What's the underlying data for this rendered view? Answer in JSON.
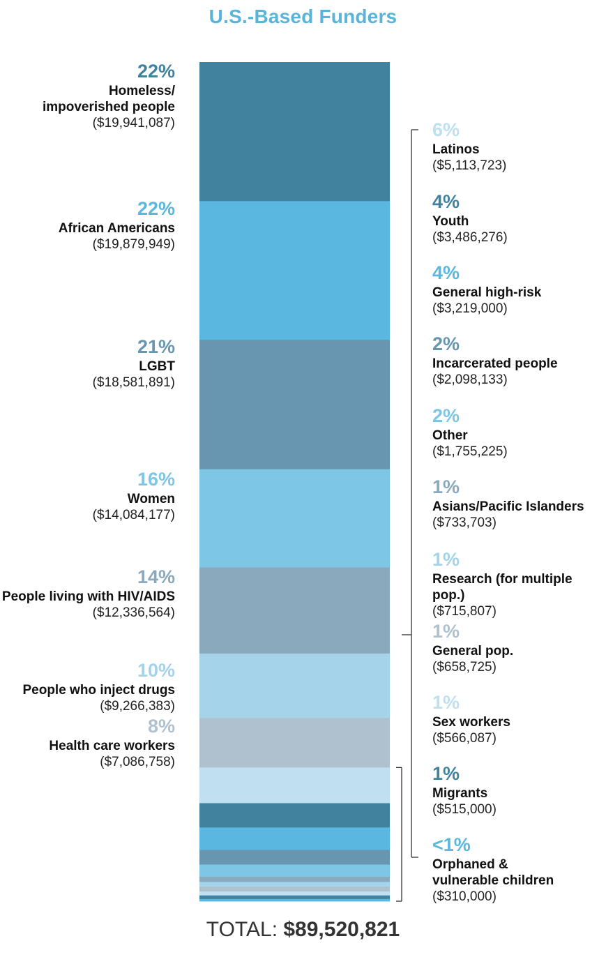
{
  "chart_data": {
    "type": "bar",
    "subtype": "stacked-100",
    "title": "U.S.-Based Funders",
    "total_label": "TOTAL:",
    "total_value": "$89,520,821",
    "segments": [
      {
        "name": "Homeless/ impoverished people",
        "name_lines": [
          "Homeless/",
          "impoverished people"
        ],
        "percent_label": "22%",
        "amount": 19941087,
        "amount_label": "($19,941,087)",
        "color": "#41839f",
        "side": "left"
      },
      {
        "name": "African Americans",
        "name_lines": [
          "African Americans"
        ],
        "percent_label": "22%",
        "amount": 19879949,
        "amount_label": "($19,879,949)",
        "color": "#5ab8e0",
        "side": "left"
      },
      {
        "name": "LGBT",
        "name_lines": [
          "LGBT"
        ],
        "percent_label": "21%",
        "amount": 18581891,
        "amount_label": "($18,581,891)",
        "color": "#6896b0",
        "side": "left"
      },
      {
        "name": "Women",
        "name_lines": [
          "Women"
        ],
        "percent_label": "16%",
        "amount": 14084177,
        "amount_label": "($14,084,177)",
        "color": "#7ec6e6",
        "side": "left"
      },
      {
        "name": "People living with HIV/AIDS",
        "name_lines": [
          "People living with HIV/AIDS"
        ],
        "percent_label": "14%",
        "amount": 12336564,
        "amount_label": "($12,336,564)",
        "color": "#8aa9bd",
        "side": "left"
      },
      {
        "name": "People who inject drugs",
        "name_lines": [
          "People who inject drugs"
        ],
        "percent_label": "10%",
        "amount": 9266383,
        "amount_label": "($9,266,383)",
        "color": "#a4d3ea",
        "side": "left"
      },
      {
        "name": "Health care workers",
        "name_lines": [
          "Health care workers"
        ],
        "percent_label": "8%",
        "amount": 7086758,
        "amount_label": "($7,086,758)",
        "color": "#afc1cf",
        "side": "left"
      },
      {
        "name": "Latinos",
        "name_lines": [
          "Latinos"
        ],
        "percent_label": "6%",
        "amount": 5113723,
        "amount_label": "($5,113,723)",
        "color": "#c0dff0",
        "side": "right"
      },
      {
        "name": "Youth",
        "name_lines": [
          "Youth"
        ],
        "percent_label": "4%",
        "amount": 3486276,
        "amount_label": "($3,486,276)",
        "color": "#41839f",
        "side": "right"
      },
      {
        "name": "General high-risk",
        "name_lines": [
          "General high-risk"
        ],
        "percent_label": "4%",
        "amount": 3219000,
        "amount_label": "($3,219,000)",
        "color": "#5ab8e0",
        "side": "right"
      },
      {
        "name": "Incarcerated people",
        "name_lines": [
          "Incarcerated people"
        ],
        "percent_label": "2%",
        "amount": 2098133,
        "amount_label": "($2,098,133)",
        "color": "#6896b0",
        "side": "right"
      },
      {
        "name": "Other",
        "name_lines": [
          "Other"
        ],
        "percent_label": "2%",
        "amount": 1755225,
        "amount_label": "($1,755,225)",
        "color": "#7ec6e6",
        "side": "right"
      },
      {
        "name": "Asians/Pacific Islanders",
        "name_lines": [
          "Asians/Pacific Islanders"
        ],
        "percent_label": "1%",
        "amount": 733703,
        "amount_label": "($733,703)",
        "color": "#8aa9bd",
        "side": "right"
      },
      {
        "name": "Research (for multiple pop.)",
        "name_lines": [
          "Research (for multiple pop.)"
        ],
        "percent_label": "1%",
        "amount": 715807,
        "amount_label": "($715,807)",
        "color": "#a4d3ea",
        "side": "right"
      },
      {
        "name": "General pop.",
        "name_lines": [
          "General pop."
        ],
        "percent_label": "1%",
        "amount": 658725,
        "amount_label": "($658,725)",
        "color": "#afc1cf",
        "side": "right"
      },
      {
        "name": "Sex workers",
        "name_lines": [
          "Sex workers"
        ],
        "percent_label": "1%",
        "amount": 566087,
        "amount_label": "($566,087)",
        "color": "#c0dff0",
        "side": "right"
      },
      {
        "name": "Migrants",
        "name_lines": [
          "Migrants"
        ],
        "percent_label": "1%",
        "amount": 515000,
        "amount_label": "($515,000)",
        "color": "#41839f",
        "side": "right"
      },
      {
        "name": "Orphaned & vulnerable children",
        "name_lines": [
          "Orphaned &",
          "vulnerable children"
        ],
        "percent_label": "<1%",
        "amount": 310000,
        "amount_label": "($310,000)",
        "color": "#5ab8e0",
        "side": "right"
      }
    ]
  }
}
